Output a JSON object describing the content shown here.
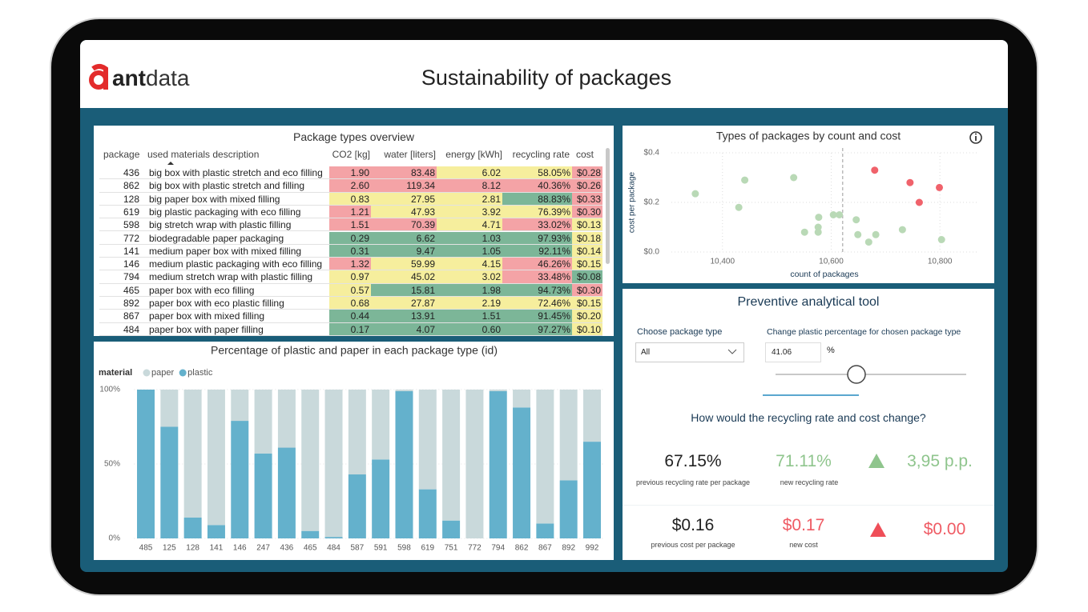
{
  "header": {
    "logo": [
      "ant",
      "data"
    ],
    "title": "Sustainability of packages"
  },
  "table": {
    "title": "Package types overview",
    "columns": [
      "package",
      "used materials description",
      "CO2 [kg]",
      "water [liters]",
      "energy [kWh]",
      "recycling rate",
      "cost"
    ],
    "rows": [
      [
        "436",
        "big box with plastic stretch and eco filling",
        "1.90",
        "83.48",
        "6.02",
        "58.05%",
        "$0.28"
      ],
      [
        "862",
        "big box with plastic stretch and filling",
        "2.60",
        "119.34",
        "8.12",
        "40.36%",
        "$0.26"
      ],
      [
        "128",
        "big paper box with mixed filling",
        "0.83",
        "27.95",
        "2.81",
        "88.83%",
        "$0.33"
      ],
      [
        "619",
        "big plastic packaging with eco filling",
        "1.21",
        "47.93",
        "3.92",
        "76.39%",
        "$0.30"
      ],
      [
        "598",
        "big stretch wrap with plastic filling",
        "1.51",
        "70.39",
        "4.71",
        "33.02%",
        "$0.13"
      ],
      [
        "772",
        "biodegradable paper packaging",
        "0.29",
        "6.62",
        "1.03",
        "97.93%",
        "$0.18"
      ],
      [
        "141",
        "medium paper box with mixed filling",
        "0.31",
        "9.47",
        "1.05",
        "92.11%",
        "$0.14"
      ],
      [
        "146",
        "medium plastic packaging with eco filling",
        "1.32",
        "59.99",
        "4.15",
        "46.26%",
        "$0.15"
      ],
      [
        "794",
        "medium stretch wrap with plastic filling",
        "0.97",
        "45.02",
        "3.02",
        "33.48%",
        "$0.08"
      ],
      [
        "465",
        "paper box with eco filling",
        "0.57",
        "15.81",
        "1.98",
        "94.73%",
        "$0.30"
      ],
      [
        "892",
        "paper box with eco plastic filling",
        "0.68",
        "27.87",
        "2.19",
        "72.46%",
        "$0.15"
      ],
      [
        "867",
        "paper box with mixed filling",
        "0.44",
        "13.91",
        "1.51",
        "91.45%",
        "$0.20"
      ],
      [
        "484",
        "paper box with paper filling",
        "0.17",
        "4.07",
        "0.60",
        "97.27%",
        "$0.10"
      ]
    ]
  },
  "chart_data": [
    {
      "type": "scatter",
      "title": "Types of packages by count and cost",
      "x_label": "count of packages",
      "y_label": "cost per package",
      "xlim": [
        10306,
        10869
      ],
      "ylim": [
        0,
        0.4
      ],
      "xticks": [
        {
          "value": 10400,
          "label": "10,400"
        },
        {
          "value": 10600,
          "label": "10,600"
        },
        {
          "value": 10800,
          "label": "10,800"
        }
      ],
      "yticks": [
        {
          "value": 0,
          "label": "$0.0"
        },
        {
          "value": 0.2,
          "label": "$0.2"
        },
        {
          "value": 0.4,
          "label": "$0.4"
        }
      ],
      "grid": true,
      "x_ref": 10621,
      "series": [
        {
          "color": "#b9d9b6",
          "x": [
            10350,
            10441,
            10531,
            10430,
            10577,
            10576,
            10576,
            10551,
            10604,
            10615,
            10646,
            10649,
            10669,
            10682,
            10731,
            10803
          ],
          "values": [
            0.235,
            0.29,
            0.3,
            0.18,
            0.14,
            0.1,
            0.08,
            0.08,
            0.15,
            0.15,
            0.13,
            0.07,
            0.04,
            0.07,
            0.09,
            0.05
          ]
        },
        {
          "color": "#f0626b",
          "x": [
            10680,
            10745,
            10799,
            10762
          ],
          "values": [
            0.33,
            0.28,
            0.26,
            0.2
          ]
        }
      ]
    },
    {
      "type": "bar",
      "stacked": true,
      "title": "Percentage of plastic and paper in each package type (id)",
      "legend_title": "material",
      "categories": [
        "485",
        "125",
        "128",
        "141",
        "146",
        "247",
        "436",
        "465",
        "484",
        "587",
        "591",
        "598",
        "619",
        "751",
        "772",
        "794",
        "862",
        "867",
        "892",
        "992"
      ],
      "series": [
        {
          "name": "paper",
          "color": "#c9d9db",
          "values": [
            0,
            25,
            86,
            91,
            21,
            43,
            39,
            95,
            99,
            57,
            47,
            1,
            67,
            88,
            100,
            1,
            12,
            90,
            61,
            35
          ]
        },
        {
          "name": "plastic",
          "color": "#64b1cc",
          "values": [
            100,
            75,
            14,
            9,
            79,
            57,
            61,
            5,
            1,
            43,
            53,
            99,
            33,
            12,
            0,
            99,
            88,
            10,
            39,
            65
          ]
        }
      ],
      "ylim": [
        0,
        100
      ],
      "yticks": [
        {
          "value": 0,
          "label": "0%"
        },
        {
          "value": 50,
          "label": "50%"
        },
        {
          "value": 100,
          "label": "100%"
        }
      ],
      "grid": true
    }
  ],
  "tool": {
    "title": "Preventive analytical tool",
    "package_label": "Choose package type",
    "package_value": "All",
    "plastic_label": "Change plastic percentage for chosen package type",
    "plastic_value": "41.06",
    "plastic_unit": "%",
    "question": "How would the recycling rate and cost change?",
    "kpis": [
      {
        "value": "67.15%",
        "label": "previous recycling rate per package"
      },
      {
        "value": "71.11%",
        "label": "new recycling rate"
      },
      {
        "value": "3,95 p.p."
      },
      {
        "value": "$0.16",
        "label": "previous cost per package"
      },
      {
        "value": "$0.17",
        "label": "new cost"
      },
      {
        "value": "$0.00"
      }
    ]
  }
}
